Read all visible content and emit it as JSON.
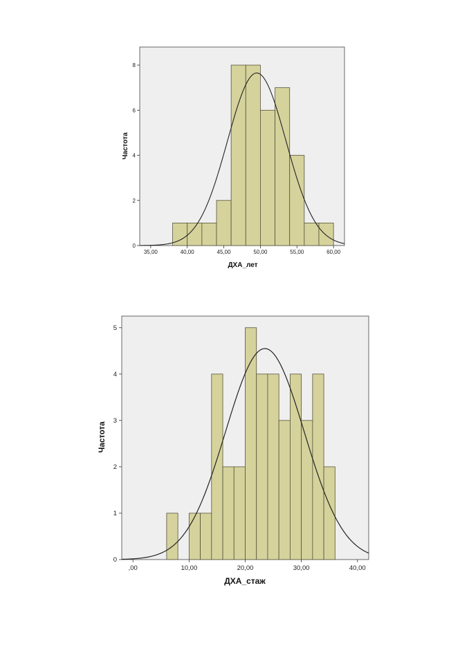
{
  "colors": {
    "plot_bg": "#efefef",
    "bar_fill": "#d5d29c",
    "bar_stroke": "#55533a",
    "curve": "#222222"
  },
  "chart_data": [
    {
      "type": "bar",
      "subtype": "histogram_with_normal_curve",
      "xlabel": "ДХА_лет",
      "ylabel": "Частота",
      "bin_edges": [
        38,
        40,
        42,
        44,
        46,
        48,
        50,
        52,
        54,
        56,
        58,
        60
      ],
      "values": [
        1,
        1,
        1,
        2,
        8,
        8,
        6,
        7,
        4,
        1,
        1
      ],
      "normal_curve": {
        "mean": 49.5,
        "sd": 4.0,
        "peak": 7.65
      },
      "xlim": [
        33.5,
        61.5
      ],
      "ylim": [
        0,
        8.8
      ],
      "x_ticks": [
        35,
        40,
        45,
        50,
        55,
        60
      ],
      "x_tick_labels": [
        "35,00",
        "40,00",
        "45,00",
        "50,00",
        "55,00",
        "60,00"
      ],
      "y_ticks": [
        0,
        2,
        4,
        6,
        8
      ],
      "y_tick_labels": [
        "0",
        "2",
        "4",
        "6",
        "8"
      ],
      "grid": false
    },
    {
      "type": "bar",
      "subtype": "histogram_with_normal_curve",
      "xlabel": "ДХА_стаж",
      "ylabel": "Частота",
      "bin_edges": [
        6,
        8,
        10,
        12,
        14,
        16,
        18,
        20,
        22,
        24,
        26,
        28,
        30,
        32,
        34,
        36
      ],
      "values": [
        1,
        0,
        1,
        1,
        4,
        2,
        2,
        5,
        4,
        4,
        3,
        4,
        3,
        4,
        2
      ],
      "normal_curve": {
        "mean": 23.5,
        "sd": 7.0,
        "peak": 4.55
      },
      "xlim": [
        -2,
        42
      ],
      "ylim": [
        0,
        5.25
      ],
      "x_ticks": [
        0,
        10,
        20,
        30,
        40
      ],
      "x_tick_labels": [
        ",00",
        "10,00",
        "20,00",
        "30,00",
        "40,00"
      ],
      "y_ticks": [
        0,
        1,
        2,
        3,
        4,
        5
      ],
      "y_tick_labels": [
        "0",
        "1",
        "2",
        "3",
        "4",
        "5"
      ],
      "grid": false
    }
  ]
}
